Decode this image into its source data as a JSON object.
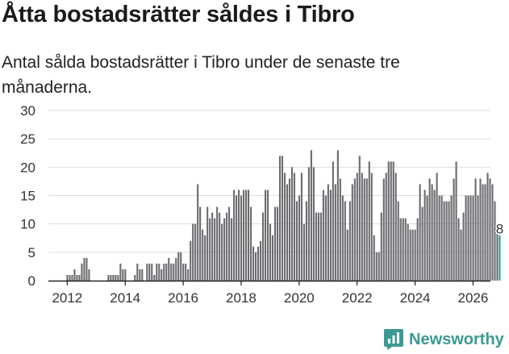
{
  "title": "Åtta bostadsrätter såldes i Tibro",
  "subtitle": "Antal sålda bostadsrätter i Tibro under de senaste tre månaderna.",
  "brand": {
    "name": "Newsworthy",
    "icon": "newsworthy-logo-icon",
    "color": "#3c9a94"
  },
  "colors": {
    "bar": "#6b6b70",
    "highlight": "#2e9c94",
    "grid": "#dddddd",
    "axis": "#222222"
  },
  "chart_data": {
    "type": "bar",
    "title": "Åtta bostadsrätter såldes i Tibro",
    "ylabel": "",
    "xlabel": "",
    "ylim": [
      0,
      30
    ],
    "y_ticks": [
      0,
      5,
      10,
      15,
      20,
      25,
      30
    ],
    "x_ticks": [
      "2012",
      "2014",
      "2016",
      "2018",
      "2020",
      "2022",
      "2024",
      "2026"
    ],
    "x_tick_years": [
      2012,
      2014,
      2016,
      2018,
      2020,
      2022,
      2024,
      2026
    ],
    "x_range_years": [
      2011.35,
      2026.6
    ],
    "first_bar_year": 2011.42,
    "bar_step_years": 0.08333,
    "grid": true,
    "series": [
      {
        "name": "Antal sålda bostadsrätter (rullande tre månader)",
        "values": [
          0,
          0,
          0,
          0,
          0,
          0,
          0,
          1,
          1,
          1,
          2,
          1,
          1,
          3,
          4,
          4,
          2,
          0,
          0,
          0,
          0,
          0,
          0,
          0,
          1,
          1,
          1,
          1,
          1,
          3,
          2,
          2,
          0,
          0,
          0,
          1,
          3,
          2,
          2,
          0,
          3,
          3,
          3,
          1,
          3,
          3,
          2,
          3,
          3,
          4,
          3,
          3,
          4,
          5,
          5,
          3,
          3,
          2,
          7,
          10,
          10,
          17,
          13,
          9,
          8,
          13,
          11,
          12,
          11,
          13,
          12,
          10,
          11,
          12,
          13,
          11,
          16,
          15,
          16,
          15,
          16,
          16,
          16,
          13,
          6,
          5,
          6,
          7,
          12,
          16,
          16,
          10,
          8,
          13,
          13,
          22,
          22,
          19,
          17,
          18,
          20,
          19,
          14,
          15,
          19,
          10,
          14,
          20,
          23,
          20,
          12,
          12,
          12,
          16,
          15,
          17,
          16,
          21,
          17,
          23,
          18,
          15,
          14,
          9,
          14,
          17,
          18,
          19,
          22,
          19,
          18,
          18,
          21,
          19,
          8,
          5,
          5,
          12,
          18,
          19,
          21,
          21,
          21,
          19,
          14,
          11,
          11,
          11,
          10,
          9,
          9,
          9,
          11,
          17,
          13,
          16,
          15,
          18,
          17,
          16,
          19,
          15,
          15,
          14,
          14,
          14,
          15,
          18,
          21,
          11,
          9,
          12,
          15,
          15,
          15,
          15,
          18,
          15,
          18,
          17,
          17,
          19,
          18,
          17,
          14,
          10,
          8
        ]
      }
    ],
    "annotations": [
      {
        "label": "8",
        "target": "last-bar",
        "value": 8
      }
    ]
  }
}
